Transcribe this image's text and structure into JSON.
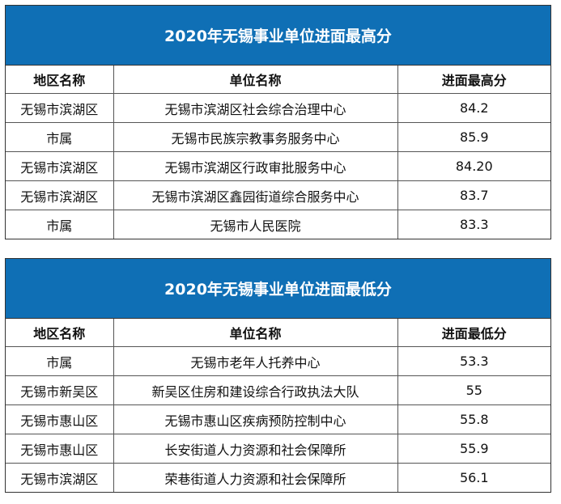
{
  "high": {
    "title": "2020年无锡事业单位进面最高分",
    "headers": [
      "地区名称",
      "单位名称",
      "进面最高分"
    ],
    "rows": [
      [
        "无锡市滨湖区",
        "无锡市滨湖区社会综合治理中心",
        "84.2"
      ],
      [
        "市属",
        "无锡市民族宗教事务服务中心",
        "85.9"
      ],
      [
        "无锡市滨湖区",
        "无锡市滨湖区行政审批服务中心",
        "84.20"
      ],
      [
        "无锡市滨湖区",
        "无锡市滨湖区鑫园街道综合服务中心",
        "83.7"
      ],
      [
        "市属",
        "无锡市人民医院",
        "83.3"
      ]
    ]
  },
  "low": {
    "title": "2020年无锡事业单位进面最低分",
    "headers": [
      "地区名称",
      "单位名称",
      "进面最低分"
    ],
    "rows": [
      [
        "市属",
        "无锡市老年人托养中心",
        "53.3"
      ],
      [
        "无锡市新吴区",
        "新吴区住房和建设综合行政执法大队",
        "55"
      ],
      [
        "无锡市惠山区",
        "无锡市惠山区疾病预防控制中心",
        "55.8"
      ],
      [
        "无锡市惠山区",
        "长安街道人力资源和社会保障所",
        "55.9"
      ],
      [
        "无锡市滨湖区",
        "荣巷街道人力资源和社会保障所",
        "56.1"
      ]
    ]
  },
  "colors": {
    "title_bg": "#0f6fb5",
    "title_text": "#ffffff"
  }
}
